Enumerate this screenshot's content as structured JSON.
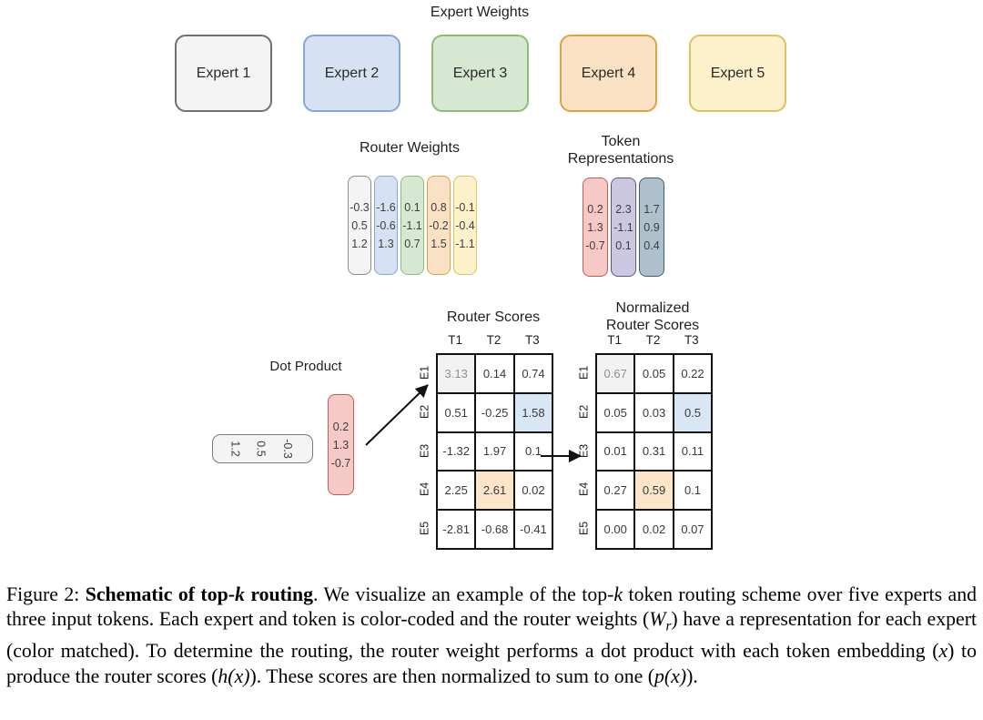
{
  "figure": {
    "expert_weights_title": "Expert Weights",
    "experts": [
      {
        "label": "Expert 1",
        "fill": "#f4f4f4",
        "border": "#707070"
      },
      {
        "label": "Expert 2",
        "fill": "#d6e2f3",
        "border": "#82a8d9"
      },
      {
        "label": "Expert 3",
        "fill": "#d6e8d2",
        "border": "#8cbd76"
      },
      {
        "label": "Expert 4",
        "fill": "#fbe1c3",
        "border": "#dfa141"
      },
      {
        "label": "Expert 5",
        "fill": "#fcf1cb",
        "border": "#ddc35f"
      }
    ],
    "router_weights": {
      "title": "Router Weights",
      "columns": [
        {
          "values": [
            "-0.3",
            "0.5",
            "1.2"
          ],
          "fill": "#f4f4f4",
          "border": "#8a8a8a"
        },
        {
          "values": [
            "-1.6",
            "-0.6",
            "1.3"
          ],
          "fill": "#d6e2f3",
          "border": "#82a8d9"
        },
        {
          "values": [
            "0.1",
            "-1.1",
            "0.7"
          ],
          "fill": "#d6e8d2",
          "border": "#8cbd76"
        },
        {
          "values": [
            "0.8",
            "-0.2",
            "1.5"
          ],
          "fill": "#fbe1c3",
          "border": "#dfa141"
        },
        {
          "values": [
            "-0.1",
            "-0.4",
            "-1.1"
          ],
          "fill": "#fcf1cb",
          "border": "#ddc35f"
        }
      ]
    },
    "token_representations": {
      "title_line1": "Token",
      "title_line2": "Representations",
      "columns": [
        {
          "values": [
            "0.2",
            "1.3",
            "-0.7"
          ],
          "fill": "#f4c9c6",
          "border": "#bf5e57"
        },
        {
          "values": [
            "2.3",
            "-1.1",
            "0.1"
          ],
          "fill": "#cdc8e2",
          "border": "#5f5482"
        },
        {
          "values": [
            "1.7",
            "0.9",
            "0.4"
          ],
          "fill": "#adc0cb",
          "border": "#41606f"
        }
      ]
    },
    "dot_product": {
      "title": "Dot Product",
      "row_vector": [
        "1.2",
        "0.5",
        "-0.3"
      ],
      "column_vector": [
        "0.2",
        "1.3",
        "-0.7"
      ]
    },
    "router_scores": {
      "title": "Router Scores",
      "col_headers": [
        "T1",
        "T2",
        "T3"
      ],
      "row_headers": [
        "E1",
        "E2",
        "E3",
        "E4",
        "E5"
      ],
      "rows": [
        [
          "3.13",
          "0.14",
          "0.74"
        ],
        [
          "0.51",
          "-0.25",
          "1.58"
        ],
        [
          "-1.32",
          "1.97",
          "0.1"
        ],
        [
          "2.25",
          "2.61",
          "0.02"
        ],
        [
          "-2.81",
          "-0.68",
          "-0.41"
        ]
      ],
      "highlights": [
        {
          "row": 0,
          "col": 0,
          "type": "gray"
        },
        {
          "row": 1,
          "col": 2,
          "type": "blue"
        },
        {
          "row": 3,
          "col": 1,
          "type": "orange"
        }
      ]
    },
    "normalized_scores": {
      "title_line1": "Normalized",
      "title_line2": "Router Scores",
      "col_headers": [
        "T1",
        "T2",
        "T3"
      ],
      "row_headers": [
        "E1",
        "E2",
        "E3",
        "E4",
        "E5"
      ],
      "rows": [
        [
          "0.67",
          "0.05",
          "0.22"
        ],
        [
          "0.05",
          "0.03",
          "0.5"
        ],
        [
          "0.01",
          "0.31",
          "0.11"
        ],
        [
          "0.27",
          "0.59",
          "0.1"
        ],
        [
          "0.00",
          "0.02",
          "0.07"
        ]
      ],
      "highlights": [
        {
          "row": 0,
          "col": 0,
          "type": "gray"
        },
        {
          "row": 1,
          "col": 2,
          "type": "blue"
        },
        {
          "row": 3,
          "col": 1,
          "type": "orange"
        }
      ]
    },
    "highlight_colors": {
      "gray": "#f2f2f2",
      "blue": "#d9e6f6",
      "orange": "#fce5c9"
    },
    "gray_highlight_text_color": "#8f8f8f",
    "arrow_color": "#111111"
  },
  "caption": {
    "p1": "Figure 2: ",
    "b1": "Schematic of top-",
    "bk": "k",
    "b2": " routing",
    "t1": ". We visualize an example of the top-",
    "ik": "k",
    "t2": " token routing scheme over five experts and three input tokens. Each expert and token is color-coded and the router weights (",
    "iW": "W",
    "iWsub": "r",
    "t3": ") have a representation for each expert (color matched). To determine the routing, the router weight performs a dot product with each token embedding (",
    "ix": "x",
    "t4": ") to produce the router scores (",
    "ih": "h(x)",
    "t5": "). These scores are then normalized to sum to one (",
    "ip": "p(x)",
    "t6": ")."
  }
}
